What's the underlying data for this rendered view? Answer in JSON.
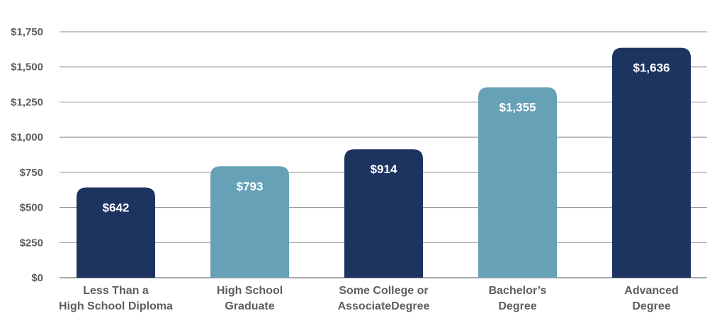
{
  "chart_data": {
    "type": "bar",
    "title": "",
    "xlabel": "",
    "ylabel": "",
    "categories": [
      [
        "Less Than a",
        "High School Diploma"
      ],
      [
        "High School",
        "Graduate"
      ],
      [
        "Some College or",
        "AssociateDegree"
      ],
      [
        "Bachelor’s",
        "Degree"
      ],
      [
        "Advanced",
        "Degree"
      ]
    ],
    "values": [
      642,
      793,
      914,
      1355,
      1636
    ],
    "value_labels": [
      "$642",
      "$793",
      "$914",
      "$1,355",
      "$1,636"
    ],
    "ylim": [
      0,
      1750
    ],
    "yticks": [
      0,
      250,
      500,
      750,
      1000,
      1250,
      1500,
      1750
    ],
    "ytick_labels": [
      "$0",
      "$250",
      "$500",
      "$750",
      "$1,000",
      "$1,250",
      "$1,500",
      "$1,750"
    ],
    "grid": true,
    "colors": {
      "dark": "#1d3461",
      "light": "#66a1b8",
      "grid": "#8c8c8c",
      "text": "#5e5e5e"
    },
    "bar_color_pattern": [
      "dark",
      "light",
      "dark",
      "light",
      "dark"
    ]
  }
}
